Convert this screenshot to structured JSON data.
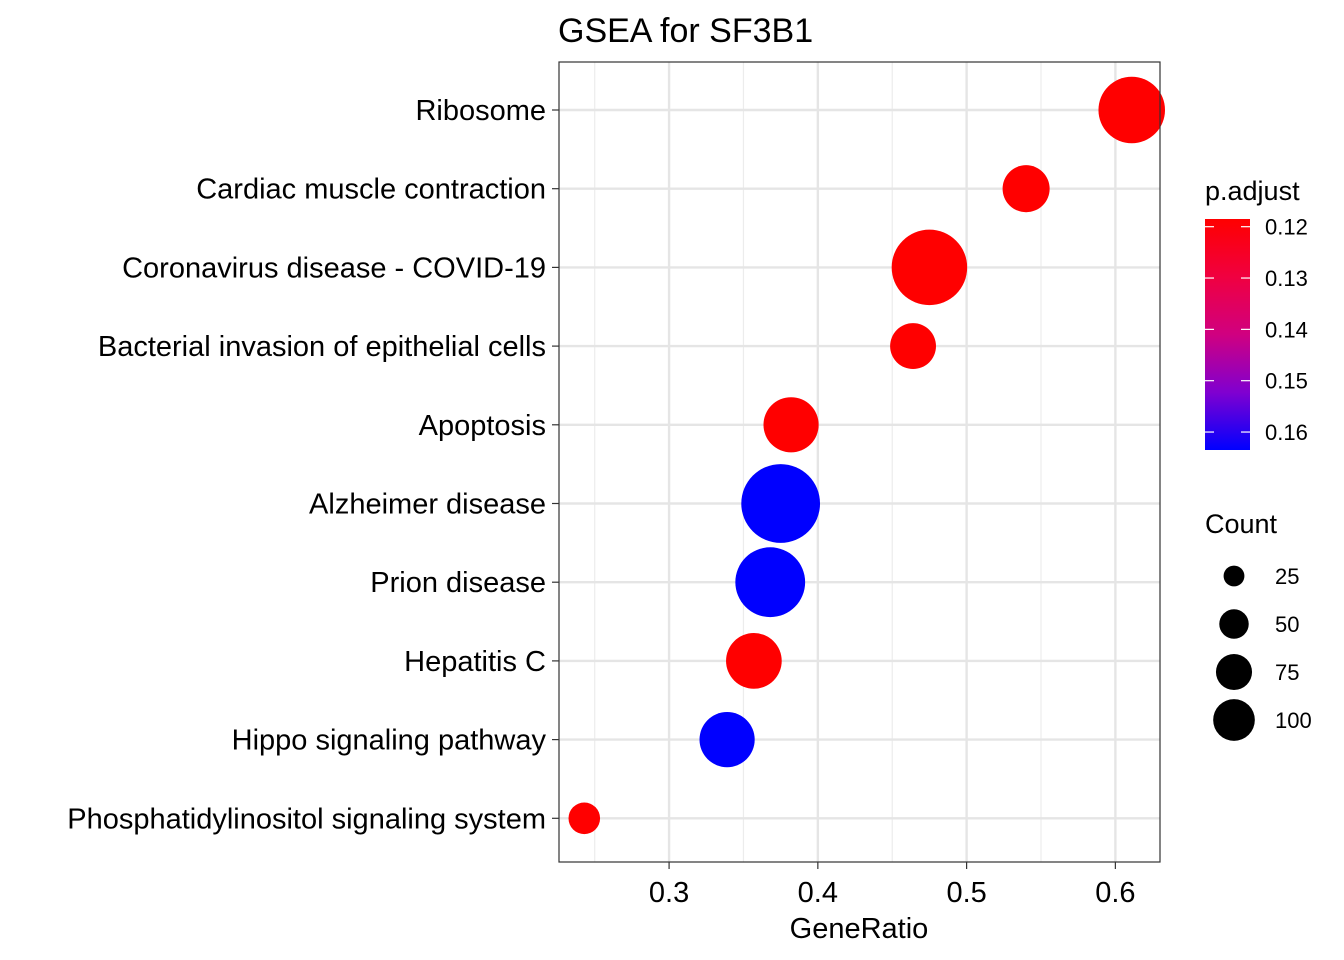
{
  "chart_data": {
    "type": "scatter",
    "title": "GSEA for SF3B1",
    "xlabel": "GeneRatio",
    "ylabel": "",
    "xlim": [
      0.226,
      0.63
    ],
    "x_ticks": [
      0.3,
      0.4,
      0.5,
      0.6
    ],
    "x_tick_labels": [
      "0.3",
      "0.4",
      "0.5",
      "0.6"
    ],
    "grid": true,
    "categories": [
      "Ribosome",
      "Cardiac muscle contraction",
      "Coronavirus disease - COVID-19",
      "Bacterial invasion of epithelial cells",
      "Apoptosis",
      "Alzheimer disease",
      "Prion disease",
      "Hepatitis C",
      "Hippo signaling pathway",
      "Phosphatidylinositol signaling system"
    ],
    "points": [
      {
        "category": "Ribosome",
        "x": 0.611,
        "count": 80,
        "p_adjust": 0.1185
      },
      {
        "category": "Cardiac muscle contraction",
        "x": 0.54,
        "count": 40,
        "p_adjust": 0.1185
      },
      {
        "category": "Coronavirus disease - COVID-19",
        "x": 0.475,
        "count": 103,
        "p_adjust": 0.1185
      },
      {
        "category": "Bacterial invasion of epithelial cells",
        "x": 0.464,
        "count": 38,
        "p_adjust": 0.1185
      },
      {
        "category": "Apoptosis",
        "x": 0.382,
        "count": 55,
        "p_adjust": 0.1185
      },
      {
        "category": "Alzheimer disease",
        "x": 0.375,
        "count": 112,
        "p_adjust": 0.1635
      },
      {
        "category": "Prion disease",
        "x": 0.368,
        "count": 88,
        "p_adjust": 0.1635
      },
      {
        "category": "Hepatitis C",
        "x": 0.357,
        "count": 56,
        "p_adjust": 0.1185
      },
      {
        "category": "Hippo signaling pathway",
        "x": 0.339,
        "count": 55,
        "p_adjust": 0.1635
      },
      {
        "category": "Phosphatidylinositol signaling system",
        "x": 0.243,
        "count": 18,
        "p_adjust": 0.1185
      }
    ],
    "color_legend": {
      "title": "p.adjust",
      "min": 0.1185,
      "max": 0.1635,
      "ticks": [
        0.12,
        0.13,
        0.14,
        0.15,
        0.16
      ],
      "tick_labels": [
        "0.12",
        "0.13",
        "0.14",
        "0.15",
        "0.16"
      ],
      "low_color": "#FF0000",
      "high_color": "#0000FF"
    },
    "size_legend": {
      "title": "Count",
      "values": [
        25,
        50,
        75,
        100
      ],
      "labels": [
        "25",
        "50",
        "75",
        "100"
      ]
    },
    "legend_position": "right"
  }
}
